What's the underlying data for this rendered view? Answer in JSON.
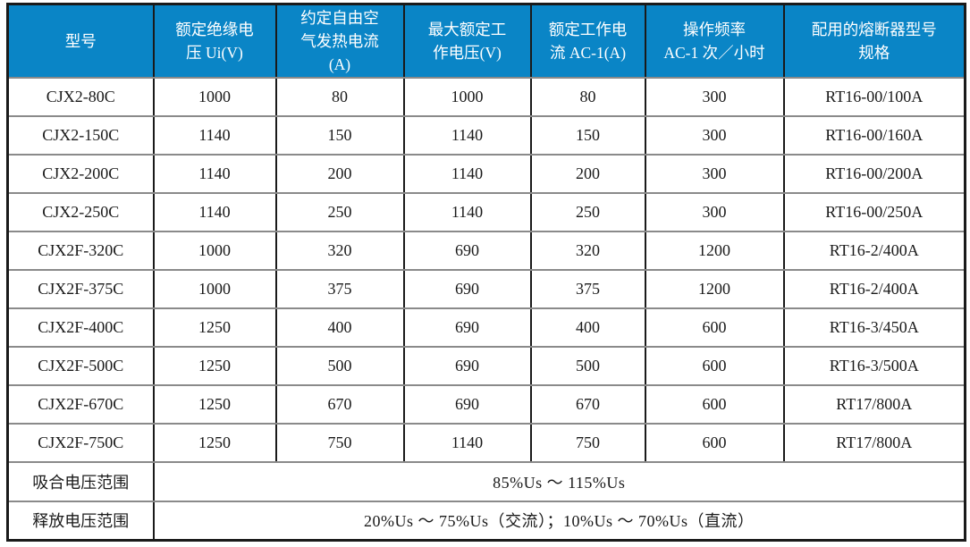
{
  "colors": {
    "header_bg": "#0a85c6",
    "header_text": "#ffffff",
    "body_text": "#1a1a1a",
    "vertical_border": "#1a1a1a",
    "horizontal_border": "#8a8a8a"
  },
  "table": {
    "columns": [
      "型号",
      "额定绝缘电\n压 Ui(V)",
      "约定自由空\n气发热电流\n(A)",
      "最大额定工\n作电压(V)",
      "额定工作电\n流 AC-1(A)",
      "操作频率\nAC-1 次／小时",
      "配用的熔断器型号\n规格"
    ],
    "rows": [
      [
        "CJX2-80C",
        "1000",
        "80",
        "1000",
        "80",
        "300",
        "RT16-00/100A"
      ],
      [
        "CJX2-150C",
        "1140",
        "150",
        "1140",
        "150",
        "300",
        "RT16-00/160A"
      ],
      [
        "CJX2-200C",
        "1140",
        "200",
        "1140",
        "200",
        "300",
        "RT16-00/200A"
      ],
      [
        "CJX2-250C",
        "1140",
        "250",
        "1140",
        "250",
        "300",
        "RT16-00/250A"
      ],
      [
        "CJX2F-320C",
        "1000",
        "320",
        "690",
        "320",
        "1200",
        "RT16-2/400A"
      ],
      [
        "CJX2F-375C",
        "1000",
        "375",
        "690",
        "375",
        "1200",
        "RT16-2/400A"
      ],
      [
        "CJX2F-400C",
        "1250",
        "400",
        "690",
        "400",
        "600",
        "RT16-3/450A"
      ],
      [
        "CJX2F-500C",
        "1250",
        "500",
        "690",
        "500",
        "600",
        "RT16-3/500A"
      ],
      [
        "CJX2F-670C",
        "1250",
        "670",
        "690",
        "670",
        "600",
        "RT17/800A"
      ],
      [
        "CJX2F-750C",
        "1250",
        "750",
        "1140",
        "750",
        "600",
        "RT17/800A"
      ]
    ],
    "footer": [
      {
        "label": "吸合电压范围",
        "value": "85%Us ～ 115%Us"
      },
      {
        "label": "释放电压范围",
        "value": "20%Us ～ 75%Us（交流）；10%Us ～ 70%Us（直流）"
      }
    ]
  }
}
